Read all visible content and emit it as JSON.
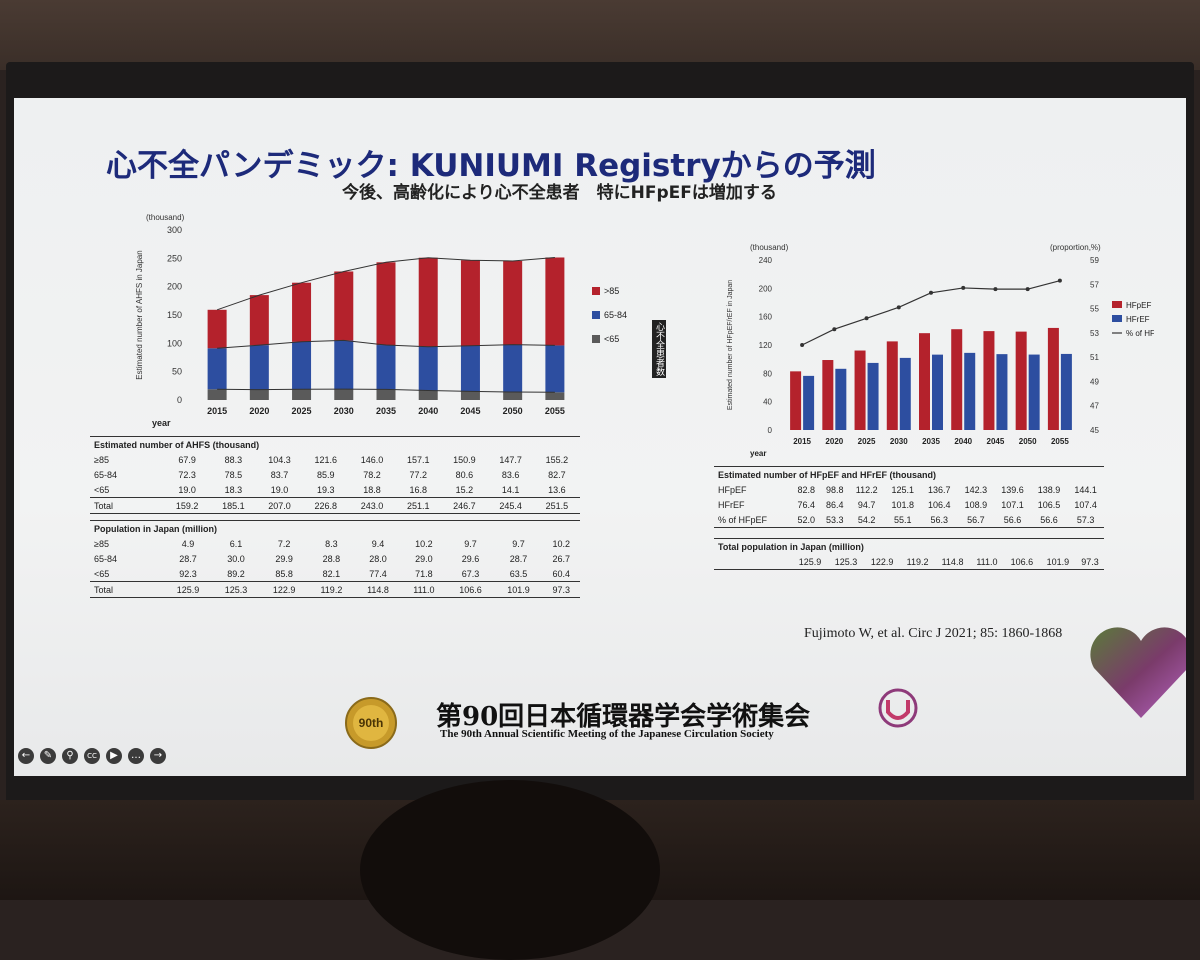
{
  "slide": {
    "title": "心不全パンデミック: KUNIUMI Registryからの予測",
    "subtitle": "今後、高齢化により心不全患者　特にHFpEFは増加する",
    "vertical_note": "心不全患者数",
    "citation": "Fujimoto W, et al. Circ J 2021; 85: 1860-1868",
    "footer_jp": "第90回日本循環器学会学術集会",
    "footer_en": "The 90th Annual Scientific Meeting of the Japanese Circulation Society",
    "badge_text": "90th"
  },
  "toolbar": {
    "icons": [
      "back-icon",
      "pen-icon",
      "zoom-icon",
      "cc-icon",
      "video-icon",
      "more-icon",
      "next-icon"
    ],
    "cc_label": "CC"
  },
  "colors": {
    "red": "#b4222c",
    "blue": "#2d4ea0",
    "gray": "#5a5a5a",
    "title": "#1d2a7a"
  },
  "chart_data": [
    {
      "type": "bar",
      "stacked": true,
      "unit_label": "(thousand)",
      "xlabel": "year",
      "ylabel": "Estimated number of AHFS in Japan",
      "ylim": [
        0,
        300
      ],
      "yticks": [
        0,
        50,
        100,
        150,
        200,
        250,
        300
      ],
      "categories": [
        "2015",
        "2020",
        "2025",
        "2030",
        "2035",
        "2040",
        "2045",
        "2050",
        "2055"
      ],
      "series": [
        {
          "name": "<65",
          "color": "#5a5a5a",
          "values": [
            19.0,
            18.3,
            19.0,
            19.3,
            18.8,
            16.8,
            15.2,
            14.1,
            13.6
          ]
        },
        {
          "name": "65-84",
          "color": "#2d4ea0",
          "values": [
            72.3,
            78.5,
            83.7,
            85.9,
            78.2,
            77.2,
            80.6,
            83.6,
            82.7
          ]
        },
        {
          "name": ">85",
          "color": "#b4222c",
          "values": [
            67.9,
            88.3,
            104.3,
            121.6,
            146.0,
            157.1,
            150.9,
            147.7,
            155.2
          ]
        }
      ],
      "legend": [
        ">85",
        "65-84",
        "<65"
      ],
      "table1": {
        "header": "Estimated number of AHFS (thousand)",
        "rows": [
          {
            "label": "≥85",
            "values": [
              "67.9",
              "88.3",
              "104.3",
              "121.6",
              "146.0",
              "157.1",
              "150.9",
              "147.7",
              "155.2"
            ]
          },
          {
            "label": "65-84",
            "values": [
              "72.3",
              "78.5",
              "83.7",
              "85.9",
              "78.2",
              "77.2",
              "80.6",
              "83.6",
              "82.7"
            ]
          },
          {
            "label": "<65",
            "values": [
              "19.0",
              "18.3",
              "19.0",
              "19.3",
              "18.8",
              "16.8",
              "15.2",
              "14.1",
              "13.6"
            ]
          },
          {
            "label": "Total",
            "values": [
              "159.2",
              "185.1",
              "207.0",
              "226.8",
              "243.0",
              "251.1",
              "246.7",
              "245.4",
              "251.5"
            ]
          }
        ]
      },
      "table2": {
        "header": "Population in Japan (million)",
        "rows": [
          {
            "label": "≥85",
            "values": [
              "4.9",
              "6.1",
              "7.2",
              "8.3",
              "9.4",
              "10.2",
              "9.7",
              "9.7",
              "10.2"
            ]
          },
          {
            "label": "65-84",
            "values": [
              "28.7",
              "30.0",
              "29.9",
              "28.8",
              "28.0",
              "29.0",
              "29.6",
              "28.7",
              "26.7"
            ]
          },
          {
            "label": "<65",
            "values": [
              "92.3",
              "89.2",
              "85.8",
              "82.1",
              "77.4",
              "71.8",
              "67.3",
              "63.5",
              "60.4"
            ]
          },
          {
            "label": "Total",
            "values": [
              "125.9",
              "125.3",
              "122.9",
              "119.2",
              "114.8",
              "111.0",
              "106.6",
              "101.9",
              "97.3"
            ]
          }
        ]
      }
    },
    {
      "type": "bar",
      "unit_label": "(thousand)",
      "unit_label_right": "(proportion,%)",
      "xlabel": "year",
      "ylabel": "Estimated number of HFpEF/rEF in Japan",
      "ylim": [
        0,
        240
      ],
      "yticks": [
        0,
        40,
        80,
        120,
        160,
        200,
        240
      ],
      "y2lim": [
        45,
        59
      ],
      "y2ticks": [
        45,
        47,
        49,
        51,
        53,
        55,
        57,
        59
      ],
      "categories": [
        "2015",
        "2020",
        "2025",
        "2030",
        "2035",
        "2040",
        "2045",
        "2050",
        "2055"
      ],
      "series": [
        {
          "name": "HFpEF",
          "color": "#b4222c",
          "values": [
            82.8,
            98.8,
            112.2,
            125.1,
            136.7,
            142.3,
            139.6,
            138.9,
            144.1
          ]
        },
        {
          "name": "HFrEF",
          "color": "#2d4ea0",
          "values": [
            76.4,
            86.4,
            94.7,
            101.8,
            106.4,
            108.9,
            107.1,
            106.5,
            107.4
          ]
        },
        {
          "name": "% of HFpEF",
          "type": "line",
          "values": [
            52.0,
            53.3,
            54.2,
            55.1,
            56.3,
            56.7,
            56.6,
            56.6,
            57.3
          ]
        }
      ],
      "table1": {
        "header": "Estimated number of HFpEF and HFrEF (thousand)",
        "rows": [
          {
            "label": "HFpEF",
            "values": [
              "82.8",
              "98.8",
              "112.2",
              "125.1",
              "136.7",
              "142.3",
              "139.6",
              "138.9",
              "144.1"
            ]
          },
          {
            "label": "HFrEF",
            "values": [
              "76.4",
              "86.4",
              "94.7",
              "101.8",
              "106.4",
              "108.9",
              "107.1",
              "106.5",
              "107.4"
            ]
          },
          {
            "label": "% of HFpEF",
            "values": [
              "52.0",
              "53.3",
              "54.2",
              "55.1",
              "56.3",
              "56.7",
              "56.6",
              "56.6",
              "57.3"
            ]
          }
        ]
      },
      "table2": {
        "header": "Total population in Japan (million)",
        "rows": [
          {
            "label": "",
            "values": [
              "125.9",
              "125.3",
              "122.9",
              "119.2",
              "114.8",
              "111.0",
              "106.6",
              "101.9",
              "97.3"
            ]
          }
        ]
      }
    }
  ]
}
